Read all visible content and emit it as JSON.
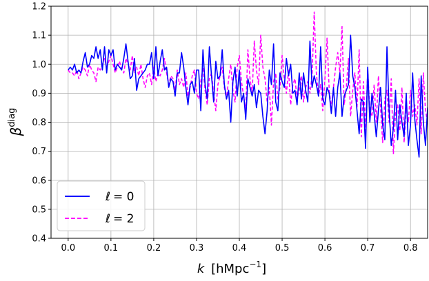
{
  "chart_data": {
    "type": "line",
    "title": "",
    "xlabel": {
      "symbol": "k",
      "unit": "[hMpc",
      "exponent": "−1",
      "close": "]"
    },
    "ylabel": {
      "symbol": "β",
      "superscript": "diag"
    },
    "xlim": [
      -0.04,
      0.84
    ],
    "ylim": [
      0.4,
      1.2
    ],
    "xticks": [
      "0.0",
      "0.1",
      "0.2",
      "0.3",
      "0.4",
      "0.5",
      "0.6",
      "0.7",
      "0.8"
    ],
    "yticks": [
      "0.4",
      "0.5",
      "0.6",
      "0.7",
      "0.8",
      "0.9",
      "1.0",
      "1.1",
      "1.2"
    ],
    "xtick_values": [
      0.0,
      0.1,
      0.2,
      0.3,
      0.4,
      0.5,
      0.6,
      0.7,
      0.8
    ],
    "ytick_values": [
      0.4,
      0.5,
      0.6,
      0.7,
      0.8,
      0.9,
      1.0,
      1.1,
      1.2
    ],
    "grid": true,
    "legend_position": "bottom-left",
    "x_start": 0.0,
    "x_step": 0.005,
    "series": [
      {
        "name": "ℓ = 0",
        "legend_symbol": "ℓ",
        "legend_value": "= 0",
        "color": "#0000ff",
        "dash": "solid",
        "values": [
          0.98,
          0.99,
          0.98,
          1.0,
          0.97,
          0.98,
          0.97,
          1.01,
          1.04,
          0.99,
          1.0,
          1.03,
          1.02,
          1.06,
          1.02,
          1.05,
          0.98,
          1.06,
          0.97,
          1.05,
          1.03,
          1.05,
          0.98,
          1.0,
          0.99,
          0.98,
          1.02,
          1.07,
          1.01,
          0.95,
          0.96,
          1.02,
          0.91,
          0.95,
          0.96,
          0.97,
          0.98,
          1.0,
          1.0,
          1.04,
          0.95,
          1.06,
          0.96,
          1.01,
          1.05,
          0.98,
          0.99,
          0.92,
          0.95,
          0.94,
          0.89,
          0.97,
          0.97,
          1.04,
          0.99,
          0.92,
          0.86,
          0.93,
          0.94,
          0.9,
          0.98,
          0.98,
          0.84,
          1.05,
          0.93,
          0.88,
          1.06,
          0.96,
          0.87,
          1.01,
          0.95,
          0.96,
          1.05,
          0.93,
          0.88,
          0.91,
          0.8,
          0.94,
          0.99,
          0.89,
          0.98,
          0.87,
          0.9,
          0.81,
          0.95,
          0.92,
          0.89,
          0.93,
          0.85,
          0.91,
          0.9,
          0.82,
          0.76,
          0.84,
          0.98,
          0.93,
          1.07,
          0.87,
          0.84,
          0.97,
          0.94,
          0.92,
          1.02,
          0.96,
          1.0,
          0.9,
          0.91,
          0.86,
          0.97,
          0.88,
          0.97,
          0.91,
          0.87,
          1.08,
          0.92,
          0.96,
          0.93,
          0.89,
          1.06,
          0.88,
          0.86,
          0.92,
          0.9,
          0.83,
          0.92,
          0.82,
          0.92,
          0.97,
          0.82,
          0.89,
          0.91,
          0.93,
          1.1,
          0.96,
          0.92,
          0.84,
          0.76,
          0.88,
          0.87,
          0.71,
          0.99,
          0.8,
          0.9,
          0.83,
          0.75,
          0.84,
          0.92,
          0.79,
          0.74,
          1.06,
          0.84,
          0.72,
          0.78,
          0.91,
          0.74,
          0.86,
          0.8,
          0.75,
          0.9,
          0.72,
          0.79,
          0.97,
          0.81,
          0.74,
          0.68,
          0.96,
          0.8,
          0.72,
          0.85,
          0.7,
          0.81,
          0.62,
          0.84,
          0.77,
          0.72,
          0.59,
          0.81,
          0.73,
          0.67,
          0.9,
          0.66,
          0.8,
          0.67,
          0.74,
          0.71,
          0.58,
          0.86,
          0.77,
          0.66,
          0.68,
          0.74,
          0.71,
          0.58,
          0.8,
          0.63,
          0.77,
          0.72,
          0.82,
          0.6,
          0.67,
          0.9,
          0.62,
          0.77,
          0.6,
          0.86,
          0.73,
          0.54,
          0.84,
          0.62,
          0.76,
          0.69,
          0.84,
          0.72,
          0.62,
          0.81,
          0.55,
          0.9,
          0.65,
          0.79,
          0.53,
          0.87,
          0.7,
          0.62,
          0.76,
          0.54
        ]
      },
      {
        "name": "ℓ = 2",
        "legend_symbol": "ℓ",
        "legend_value": "= 2",
        "color": "#ff00ff",
        "dash": "dashed",
        "values": [
          0.98,
          0.97,
          0.97,
          0.96,
          0.98,
          0.95,
          0.97,
          0.99,
          0.98,
          0.96,
          1.0,
          0.98,
          0.97,
          0.94,
          0.99,
          0.98,
          1.0,
          1.02,
          0.99,
          1.01,
          1.03,
          1.0,
          0.97,
          0.99,
          1.01,
          0.98,
          0.97,
          1.02,
          1.0,
          0.98,
          1.03,
          0.97,
          0.99,
          0.96,
          1.0,
          0.95,
          0.92,
          0.96,
          0.97,
          0.93,
          0.99,
          0.94,
          0.97,
          0.96,
          0.98,
          1.02,
          0.97,
          0.93,
          0.96,
          0.95,
          0.91,
          0.98,
          0.93,
          0.95,
          0.92,
          0.97,
          0.89,
          0.92,
          0.96,
          0.98,
          0.9,
          0.88,
          0.94,
          0.99,
          0.91,
          0.86,
          0.95,
          0.97,
          0.9,
          0.84,
          0.93,
          0.96,
          0.99,
          0.92,
          0.88,
          0.95,
          1.0,
          0.91,
          0.87,
          0.99,
          1.03,
          0.94,
          0.89,
          0.84,
          1.05,
          0.95,
          0.9,
          1.08,
          0.98,
          0.93,
          1.1,
          0.99,
          0.95,
          0.87,
          0.92,
          0.79,
          0.94,
          0.97,
          0.88,
          0.92,
          1.03,
          0.95,
          0.9,
          0.98,
          0.86,
          0.93,
          0.95,
          0.88,
          0.91,
          0.96,
          0.87,
          0.92,
          0.94,
          0.9,
          0.96,
          1.18,
          0.97,
          0.89,
          0.93,
          0.84,
          0.95,
          1.09,
          0.91,
          0.85,
          0.92,
          0.99,
          1.04,
          0.97,
          1.13,
          0.86,
          0.92,
          1.02,
          0.82,
          0.91,
          0.97,
          0.85,
          1.05,
          0.75,
          0.94,
          0.77,
          0.98,
          0.84,
          0.82,
          0.93,
          0.8,
          0.96,
          0.85,
          0.73,
          0.88,
          0.91,
          0.8,
          0.95,
          0.69,
          0.83,
          0.86,
          0.77,
          0.92,
          0.73,
          0.85,
          0.8,
          0.91,
          0.82,
          0.86,
          0.79,
          0.95,
          0.76,
          0.97,
          0.84,
          0.8,
          1.16,
          0.73,
          0.91,
          0.81,
          1.02,
          0.77,
          0.88,
          0.74,
          0.97,
          0.79,
          0.85,
          0.66,
          0.92,
          0.78,
          0.72,
          0.87,
          0.76,
          0.94,
          0.71,
          0.83,
          0.76,
          0.58,
          0.84,
          0.78,
          0.63,
          0.86,
          0.71,
          0.75,
          0.83,
          0.94,
          0.69,
          0.77,
          0.92,
          0.65,
          0.78,
          0.72,
          0.86,
          0.74,
          0.53,
          0.82,
          0.58,
          0.78,
          0.64,
          0.71,
          0.69,
          0.85,
          0.66,
          0.73,
          0.77,
          0.69,
          0.82,
          0.72,
          0.68,
          0.76,
          0.7,
          0.79,
          0.72,
          0.77,
          0.7
        ]
      }
    ]
  }
}
